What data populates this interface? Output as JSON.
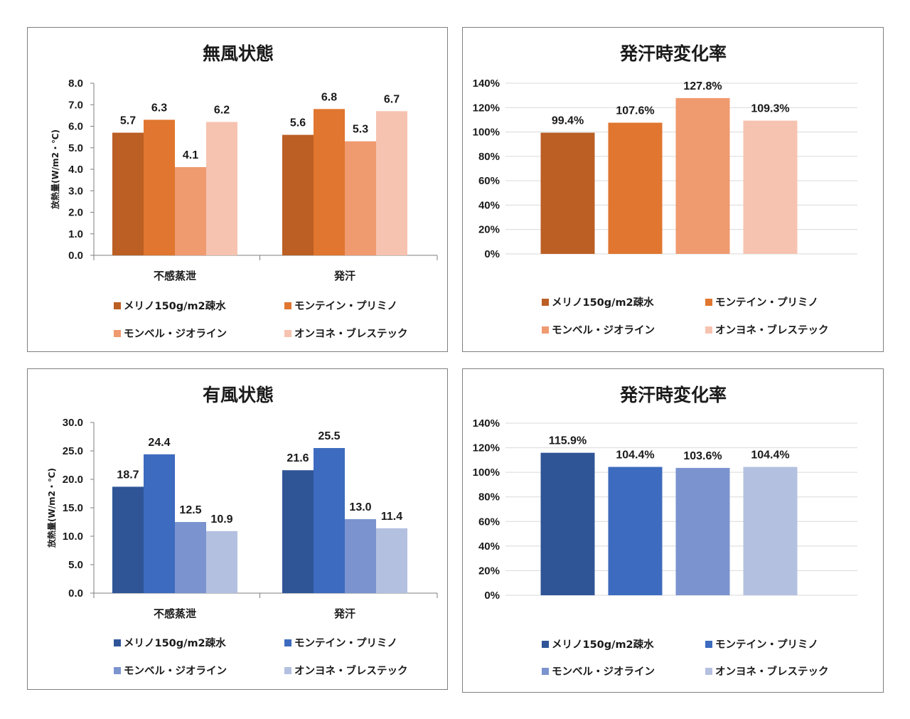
{
  "chart_data": [
    {
      "id": "c1",
      "type": "bar",
      "title": "無風状態",
      "ylabel": "放熱量(W/m2・℃)",
      "xlabel": "",
      "ylim": [
        0,
        8
      ],
      "yticks": [
        "0.0",
        "1.0",
        "2.0",
        "3.0",
        "4.0",
        "5.0",
        "6.0",
        "7.0",
        "8.0"
      ],
      "categories": [
        "不感蒸泄",
        "発汗"
      ],
      "series": [
        {
          "name": "メリノ150g/m2疎水",
          "color": "#bb5f24",
          "values": [
            5.7,
            5.6
          ],
          "labels": [
            "5.7",
            "5.6"
          ]
        },
        {
          "name": "モンテイン・プリミノ",
          "color": "#e0762f",
          "values": [
            6.3,
            6.8
          ],
          "labels": [
            "6.3",
            "6.8"
          ]
        },
        {
          "name": "モンベル・ジオライン",
          "color": "#f09a70",
          "values": [
            4.1,
            5.3
          ],
          "labels": [
            "4.1",
            "5.3"
          ]
        },
        {
          "name": "オンヨネ・ブレステック",
          "color": "#f6c3b0",
          "values": [
            6.2,
            6.7
          ],
          "labels": [
            "6.2",
            "6.7"
          ]
        }
      ],
      "legend": "bottom",
      "grid": false
    },
    {
      "id": "c2",
      "type": "bar",
      "title": "発汗時変化率",
      "ylabel": "",
      "xlabel": "",
      "ylim": [
        0,
        140
      ],
      "yticks": [
        "0%",
        "20%",
        "40%",
        "60%",
        "80%",
        "100%",
        "120%",
        "140%"
      ],
      "categories": [
        ""
      ],
      "series": [
        {
          "name": "メリノ150g/m2疎水",
          "color": "#bb5f24",
          "values": [
            99.4
          ],
          "labels": [
            "99.4%"
          ]
        },
        {
          "name": "モンテイン・プリミノ",
          "color": "#e0762f",
          "values": [
            107.6
          ],
          "labels": [
            "107.6%"
          ]
        },
        {
          "name": "モンベル・ジオライン",
          "color": "#f09a70",
          "values": [
            127.8
          ],
          "labels": [
            "127.8%"
          ]
        },
        {
          "name": "オンヨネ・ブレステック",
          "color": "#f6c3b0",
          "values": [
            109.3
          ],
          "labels": [
            "109.3%"
          ]
        }
      ],
      "legend": "bottom",
      "grid": true
    },
    {
      "id": "c3",
      "type": "bar",
      "title": "有風状態",
      "ylabel": "放熱量(W/m2・℃)",
      "xlabel": "",
      "ylim": [
        0,
        30
      ],
      "yticks": [
        "0.0",
        "5.0",
        "10.0",
        "15.0",
        "20.0",
        "25.0",
        "30.0"
      ],
      "categories": [
        "不感蒸泄",
        "発汗"
      ],
      "series": [
        {
          "name": "メリノ150g/m2疎水",
          "color": "#2f5597",
          "values": [
            18.7,
            21.6
          ],
          "labels": [
            "18.7",
            "21.6"
          ]
        },
        {
          "name": "モンテイン・プリミノ",
          "color": "#3d6bbf",
          "values": [
            24.4,
            25.5
          ],
          "labels": [
            "24.4",
            "25.5"
          ]
        },
        {
          "name": "モンベル・ジオライン",
          "color": "#7b94cf",
          "values": [
            12.5,
            13.0
          ],
          "labels": [
            "12.5",
            "13.0"
          ]
        },
        {
          "name": "オンヨネ・ブレステック",
          "color": "#b4c0e0",
          "values": [
            10.9,
            11.4
          ],
          "labels": [
            "10.9",
            "11.4"
          ]
        }
      ],
      "legend": "bottom",
      "grid": false
    },
    {
      "id": "c4",
      "type": "bar",
      "title": "発汗時変化率",
      "ylabel": "",
      "xlabel": "",
      "ylim": [
        0,
        140
      ],
      "yticks": [
        "0%",
        "20%",
        "40%",
        "60%",
        "80%",
        "100%",
        "120%",
        "140%"
      ],
      "categories": [
        ""
      ],
      "series": [
        {
          "name": "メリノ150g/m2疎水",
          "color": "#2f5597",
          "values": [
            115.9
          ],
          "labels": [
            "115.9%"
          ]
        },
        {
          "name": "モンテイン・プリミノ",
          "color": "#3d6bbf",
          "values": [
            104.4
          ],
          "labels": [
            "104.4%"
          ]
        },
        {
          "name": "モンベル・ジオライン",
          "color": "#7b94cf",
          "values": [
            103.6
          ],
          "labels": [
            "103.6%"
          ]
        },
        {
          "name": "オンヨネ・ブレステック",
          "color": "#b4c0e0",
          "values": [
            104.4
          ],
          "labels": [
            "104.4%"
          ]
        }
      ],
      "legend": "bottom",
      "grid": true
    }
  ]
}
